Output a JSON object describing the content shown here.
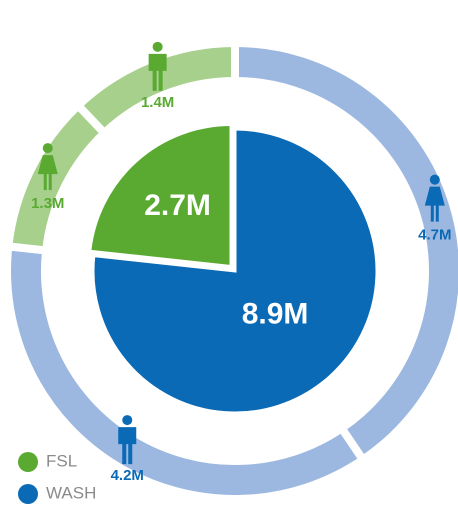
{
  "chart_data": {
    "type": "pie",
    "categories": [
      "FSL",
      "WASH"
    ],
    "colors": [
      "#5aaa32",
      "#0b6ab5"
    ],
    "values": [
      2700000,
      8900000
    ],
    "value_labels": [
      "2.7M",
      "8.9M"
    ],
    "outer": {
      "values": [
        4700000,
        4200000,
        1300000,
        1400000
      ],
      "value_labels": [
        "4.7M",
        "4.2M",
        "1.3M",
        "1.4M"
      ],
      "colors": [
        "#9db8e0",
        "#9db8e0",
        "#a8d08d",
        "#a8d08d"
      ],
      "label_colors": [
        "#0b6ab5",
        "#0b6ab5",
        "#5aaa32",
        "#5aaa32"
      ]
    }
  }
}
